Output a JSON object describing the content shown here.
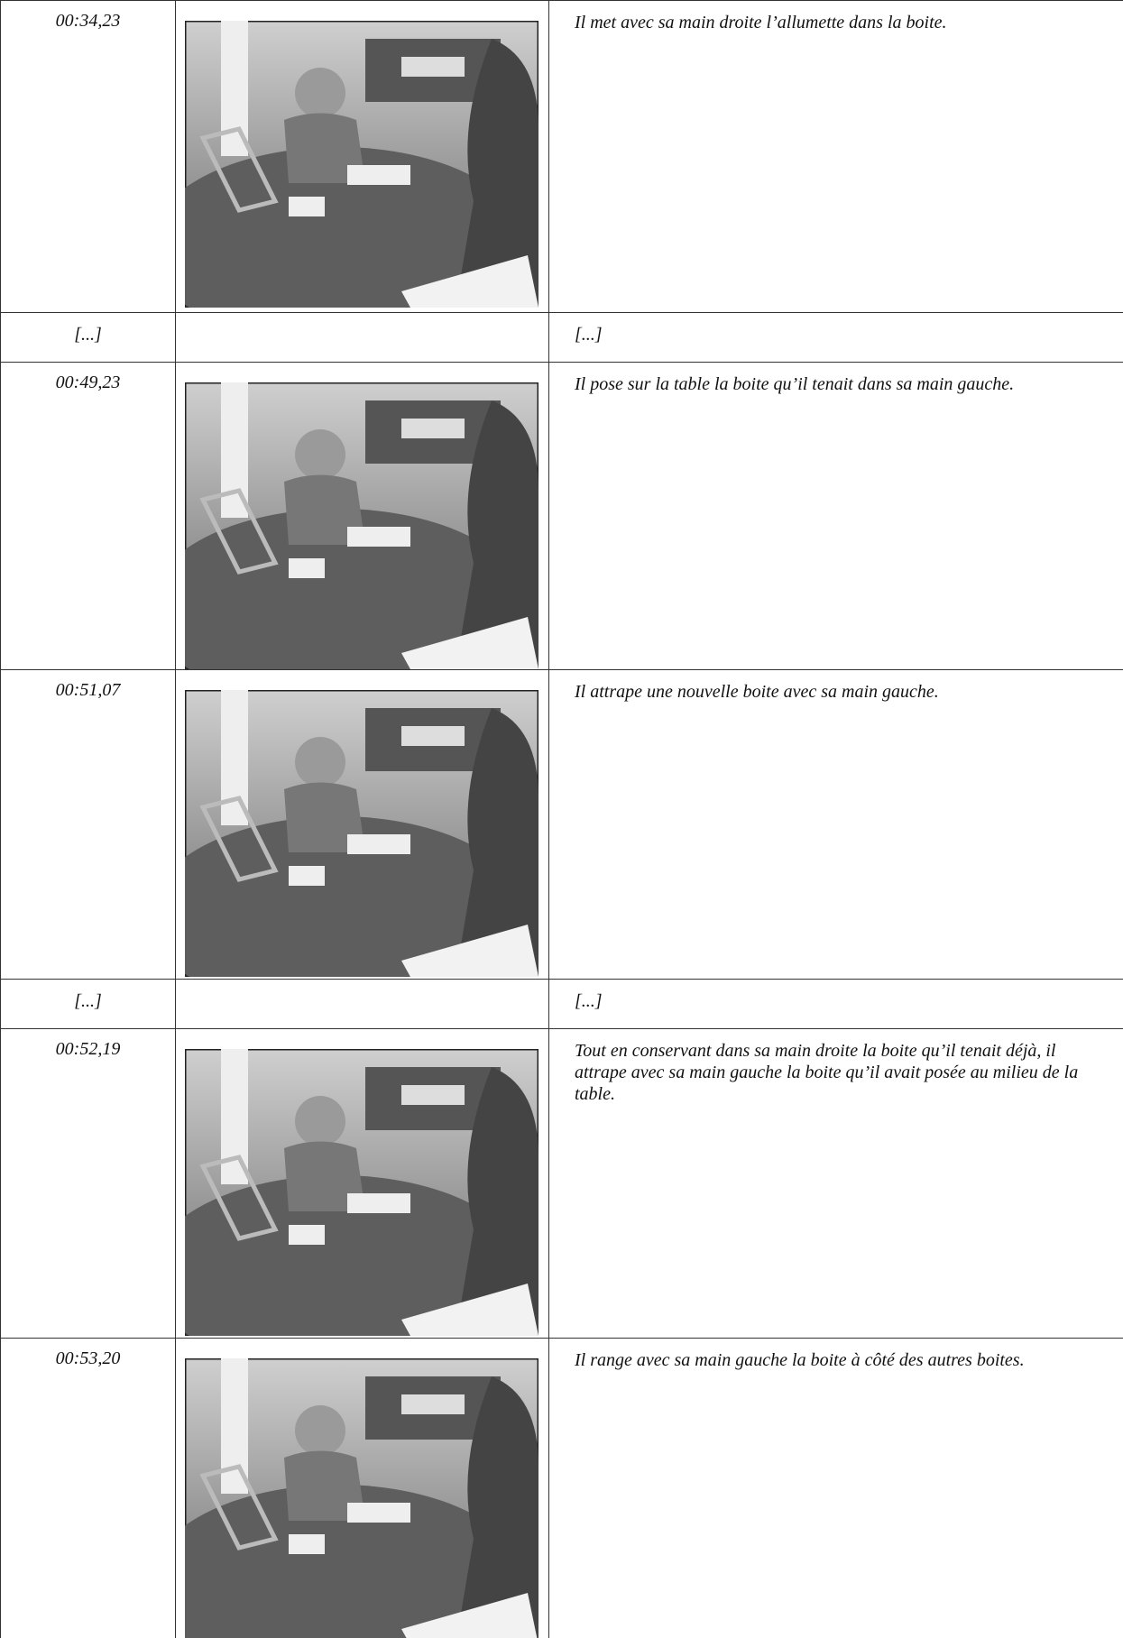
{
  "rows": [
    {
      "time": "00:34,23",
      "description": "Il met avec sa main droite l’allumette dans la boite."
    },
    {
      "time": "[...]",
      "description": "[...]"
    },
    {
      "time": "00:49,23",
      "description": "Il pose sur la table la boite qu’il tenait dans sa main gauche."
    },
    {
      "time": "00:51,07",
      "description": "Il attrape une nouvelle boite avec sa main gauche."
    },
    {
      "time": "[...]",
      "description": "[...]"
    },
    {
      "time": "00:52,19",
      "description": "Tout en conservant dans sa main droite la boite qu’il tenait déjà, il attrape avec sa main gauche la boite qu’il avait posée au milieu de la table."
    },
    {
      "time": "00:53,20",
      "description": "Il range avec sa main gauche la boite à côté des autres boites."
    }
  ]
}
